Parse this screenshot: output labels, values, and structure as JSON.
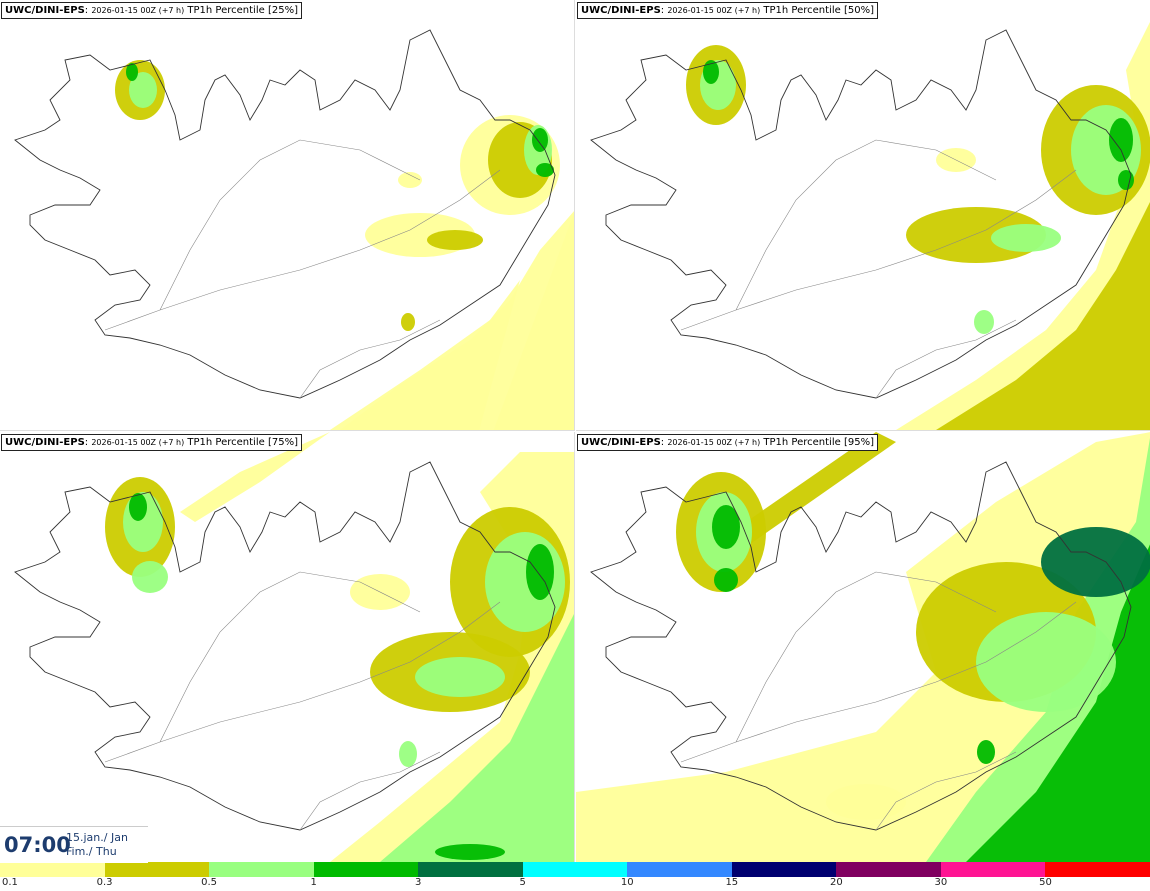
{
  "panels": [
    {
      "model": "UWC/DINI-EPS",
      "run": "2026-01-15 00Z (+7 h)",
      "field": "TP1h Percentile [25%]"
    },
    {
      "model": "UWC/DINI-EPS",
      "run": "2026-01-15 00Z (+7 h)",
      "field": "TP1h Percentile [50%]"
    },
    {
      "model": "UWC/DINI-EPS",
      "run": "2026-01-15 00Z (+7 h)",
      "field": "TP1h Percentile [75%]"
    },
    {
      "model": "UWC/DINI-EPS",
      "run": "2026-01-15 00Z (+7 h)",
      "field": "TP1h Percentile [95%]"
    }
  ],
  "valid_time": {
    "time": "07:00",
    "date_line1": "15.jan./ Jan",
    "date_line2": "Fim./ Thu"
  },
  "legend": {
    "colors": [
      "#ffff99",
      "#cccc00",
      "#99ff80",
      "#00bb00",
      "#007040",
      "#00ffff",
      "#3388ff",
      "#000070",
      "#800060",
      "#ff1493",
      "#ff0000"
    ],
    "labels": [
      "0.1",
      "0.3",
      "0.5",
      "1",
      "3",
      "5",
      "10",
      "15",
      "20",
      "30",
      "50"
    ]
  }
}
